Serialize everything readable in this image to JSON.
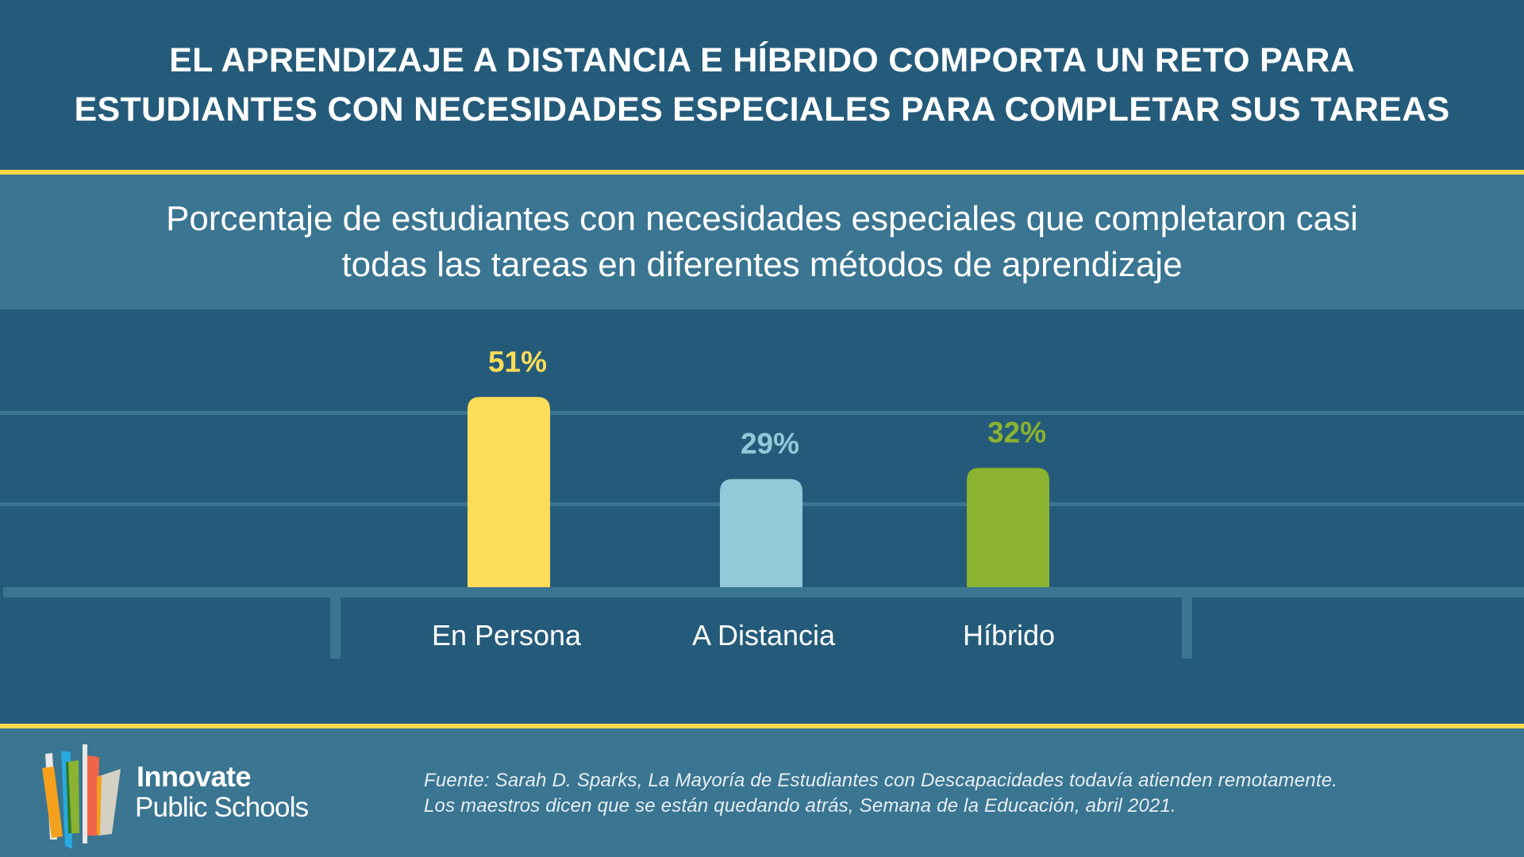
{
  "header": {
    "title_lines": [
      "EL APRENDIZAJE A DISTANCIA E HÍBRIDO COMPORTA UN RETO PARA",
      "ESTUDIANTES CON NECESIDADES ESPECIALES PARA COMPLETAR SUS TAREAS"
    ]
  },
  "colors": {
    "background": "#255b7a",
    "band": "#3a7591",
    "accent": "#fbd94b"
  },
  "chart_data": {
    "type": "bar",
    "title": "Porcentaje de estudiantes con necesidades especiales que completaron casi todas las tareas en diferentes métodos de aprendizaje",
    "title_lines": [
      "Porcentaje de estudiantes con necesidades especiales que completaron casi",
      "todas las tareas en diferentes métodos de aprendizaje"
    ],
    "categories": [
      "En Persona",
      "A Distancia",
      "Híbrido"
    ],
    "values": [
      51,
      29,
      32
    ],
    "value_labels": [
      "51%",
      "29%",
      "32%"
    ],
    "colors": [
      "#fddc58",
      "#93cad9",
      "#8bb230"
    ],
    "unit": "%",
    "xlabel": "",
    "ylabel": "",
    "ylim": [
      0,
      80
    ],
    "grid": true
  },
  "footer": {
    "logo_text_1": "Innovate",
    "logo_text_2": "Public Schools",
    "source_lines": [
      "Fuente: Sarah D. Sparks, La Mayoría de Estudiantes con Descapacidades todavía atienden remotamente.",
      "Los maestros dicen que se están quedando atrás, Semana de la Educación, abril 2021."
    ]
  }
}
